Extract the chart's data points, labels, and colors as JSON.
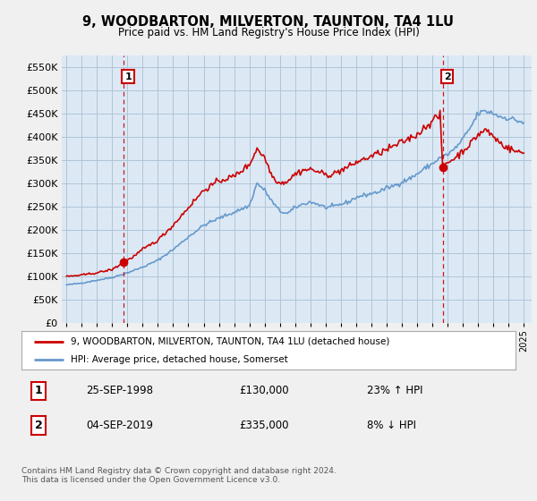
{
  "title": "9, WOODBARTON, MILVERTON, TAUNTON, TA4 1LU",
  "subtitle": "Price paid vs. HM Land Registry's House Price Index (HPI)",
  "background_color": "#f0f0f0",
  "plot_bg_color": "#dce9f5",
  "grid_color": "#b0c4d8",
  "ylim": [
    0,
    575000
  ],
  "yticks": [
    0,
    50000,
    100000,
    150000,
    200000,
    250000,
    300000,
    350000,
    400000,
    450000,
    500000,
    550000
  ],
  "sale1_date_num": 1998.75,
  "sale1_value": 130000,
  "sale2_date_num": 2019.67,
  "sale2_value": 335000,
  "legend_entry1": "9, WOODBARTON, MILVERTON, TAUNTON, TA4 1LU (detached house)",
  "legend_entry2": "HPI: Average price, detached house, Somerset",
  "table_row1": [
    "1",
    "25-SEP-1998",
    "£130,000",
    "23% ↑ HPI"
  ],
  "table_row2": [
    "2",
    "04-SEP-2019",
    "£335,000",
    "8% ↓ HPI"
  ],
  "footnote": "Contains HM Land Registry data © Crown copyright and database right 2024.\nThis data is licensed under the Open Government Licence v3.0.",
  "sold_line_color": "#cc0000",
  "hpi_line_color": "#6699cc",
  "vline_color": "#cc0000",
  "marker_color": "#cc0000",
  "label_box_color": "#cc0000",
  "xstart": 1995,
  "xend": 2025
}
